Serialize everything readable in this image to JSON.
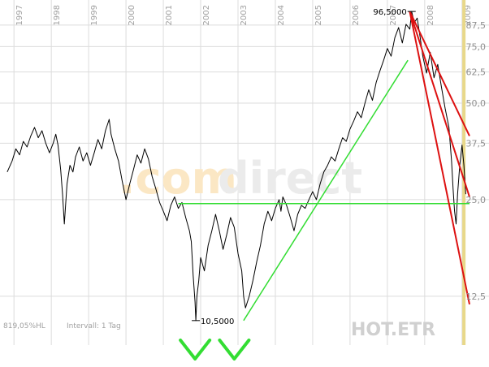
{
  "chart_data": {
    "type": "line",
    "title": "",
    "xlabel": "",
    "ylabel": "",
    "y_scale": "log",
    "ylim": [
      9.5,
      100
    ],
    "xlim": [
      1996.8,
      2009.2
    ],
    "grid": true,
    "year_labels": [
      {
        "year": 1997,
        "label": "1997"
      },
      {
        "year": 1998,
        "label": "1998"
      },
      {
        "year": 1999,
        "label": "1999"
      },
      {
        "year": 2000,
        "label": "2000"
      },
      {
        "year": 2001,
        "label": "2001"
      },
      {
        "year": 2002,
        "label": "2002"
      },
      {
        "year": 2003,
        "label": "2003"
      },
      {
        "year": 2004,
        "label": "2004"
      },
      {
        "year": 2005,
        "label": "2005"
      },
      {
        "year": 2006,
        "label": "2006"
      },
      {
        "year": 2007,
        "label": "2007"
      },
      {
        "year": 2008,
        "label": "2008"
      },
      {
        "year": 2009,
        "label": "2009"
      }
    ],
    "y_ticks": [
      {
        "value": 87.5,
        "label": "87,5"
      },
      {
        "value": 75.0,
        "label": "75,0"
      },
      {
        "value": 62.5,
        "label": "62,5"
      },
      {
        "value": 50.0,
        "label": "50,0"
      },
      {
        "value": 37.5,
        "label": "37,5"
      },
      {
        "value": 25.0,
        "label": "25,0"
      },
      {
        "value": 12.5,
        "label": "12,5"
      }
    ],
    "series": [
      {
        "color": "#000000",
        "points": [
          [
            1996.82,
            30.5
          ],
          [
            1996.95,
            33
          ],
          [
            1997.05,
            36
          ],
          [
            1997.15,
            34.5
          ],
          [
            1997.25,
            38
          ],
          [
            1997.35,
            36.5
          ],
          [
            1997.45,
            39.5
          ],
          [
            1997.55,
            42
          ],
          [
            1997.65,
            39
          ],
          [
            1997.75,
            41
          ],
          [
            1997.85,
            37.5
          ],
          [
            1997.95,
            35
          ],
          [
            1998.05,
            37.5
          ],
          [
            1998.12,
            40
          ],
          [
            1998.18,
            37
          ],
          [
            1998.25,
            31
          ],
          [
            1998.3,
            26
          ],
          [
            1998.35,
            21
          ],
          [
            1998.42,
            28
          ],
          [
            1998.5,
            32
          ],
          [
            1998.58,
            30.5
          ],
          [
            1998.65,
            34
          ],
          [
            1998.75,
            36.5
          ],
          [
            1998.85,
            33
          ],
          [
            1998.95,
            35
          ],
          [
            1999.05,
            32
          ],
          [
            1999.15,
            35
          ],
          [
            1999.25,
            38.5
          ],
          [
            1999.35,
            36
          ],
          [
            1999.45,
            41
          ],
          [
            1999.55,
            44.5
          ],
          [
            1999.6,
            40
          ],
          [
            1999.7,
            36
          ],
          [
            1999.8,
            33
          ],
          [
            1999.9,
            28.5
          ],
          [
            2000.0,
            25
          ],
          [
            2000.1,
            28
          ],
          [
            2000.2,
            31
          ],
          [
            2000.3,
            34.5
          ],
          [
            2000.4,
            32.5
          ],
          [
            2000.5,
            36
          ],
          [
            2000.6,
            33.5
          ],
          [
            2000.7,
            29.5
          ],
          [
            2000.8,
            27
          ],
          [
            2000.9,
            24.5
          ],
          [
            2001.0,
            23
          ],
          [
            2001.1,
            21.5
          ],
          [
            2001.2,
            24
          ],
          [
            2001.3,
            25.5
          ],
          [
            2001.4,
            23.5
          ],
          [
            2001.5,
            24.5
          ],
          [
            2001.6,
            22
          ],
          [
            2001.7,
            20
          ],
          [
            2001.75,
            18.5
          ],
          [
            2001.8,
            14.5
          ],
          [
            2001.85,
            12
          ],
          [
            2001.87,
            10.5
          ],
          [
            2001.9,
            12.5
          ],
          [
            2001.95,
            14
          ],
          [
            2002.0,
            16.5
          ],
          [
            2002.1,
            15
          ],
          [
            2002.2,
            18
          ],
          [
            2002.3,
            20
          ],
          [
            2002.4,
            22.5
          ],
          [
            2002.5,
            20
          ],
          [
            2002.6,
            17.5
          ],
          [
            2002.7,
            19.5
          ],
          [
            2002.8,
            22
          ],
          [
            2002.9,
            20.5
          ],
          [
            2003.0,
            17
          ],
          [
            2003.1,
            15
          ],
          [
            2003.15,
            12.5
          ],
          [
            2003.2,
            11.5
          ],
          [
            2003.3,
            12.5
          ],
          [
            2003.4,
            14
          ],
          [
            2003.5,
            16
          ],
          [
            2003.6,
            18
          ],
          [
            2003.7,
            21
          ],
          [
            2003.8,
            23
          ],
          [
            2003.9,
            21.5
          ],
          [
            2004.0,
            23.5
          ],
          [
            2004.1,
            25
          ],
          [
            2004.15,
            23
          ],
          [
            2004.2,
            25.5
          ],
          [
            2004.3,
            24
          ],
          [
            2004.4,
            22
          ],
          [
            2004.5,
            20
          ],
          [
            2004.6,
            22.5
          ],
          [
            2004.7,
            24
          ],
          [
            2004.8,
            23.5
          ],
          [
            2004.9,
            25
          ],
          [
            2005.0,
            26.5
          ],
          [
            2005.1,
            25
          ],
          [
            2005.2,
            28
          ],
          [
            2005.3,
            30.5
          ],
          [
            2005.4,
            32
          ],
          [
            2005.5,
            34
          ],
          [
            2005.6,
            33
          ],
          [
            2005.7,
            36
          ],
          [
            2005.8,
            39
          ],
          [
            2005.9,
            38
          ],
          [
            2006.0,
            41.5
          ],
          [
            2006.1,
            44
          ],
          [
            2006.2,
            47
          ],
          [
            2006.3,
            45
          ],
          [
            2006.4,
            50
          ],
          [
            2006.5,
            55
          ],
          [
            2006.6,
            51
          ],
          [
            2006.7,
            58
          ],
          [
            2006.8,
            63
          ],
          [
            2006.9,
            68
          ],
          [
            2007.0,
            74
          ],
          [
            2007.1,
            70
          ],
          [
            2007.2,
            80
          ],
          [
            2007.3,
            86
          ],
          [
            2007.4,
            77
          ],
          [
            2007.5,
            88
          ],
          [
            2007.6,
            85
          ],
          [
            2007.65,
            96.5
          ],
          [
            2007.72,
            89
          ],
          [
            2007.8,
            92
          ],
          [
            2007.88,
            80
          ],
          [
            2007.95,
            70
          ],
          [
            2008.05,
            62
          ],
          [
            2008.15,
            72
          ],
          [
            2008.25,
            60
          ],
          [
            2008.35,
            66
          ],
          [
            2008.45,
            56
          ],
          [
            2008.55,
            48
          ],
          [
            2008.65,
            42
          ],
          [
            2008.72,
            33
          ],
          [
            2008.76,
            27
          ],
          [
            2008.8,
            23
          ],
          [
            2008.84,
            21
          ],
          [
            2008.88,
            26
          ],
          [
            2008.94,
            32
          ],
          [
            2009.0,
            37
          ],
          [
            2009.05,
            32
          ],
          [
            2009.1,
            26
          ]
        ]
      }
    ],
    "trendlines": [
      {
        "color": "#33dd33",
        "points": [
          [
            2003.15,
            10.5
          ],
          [
            2007.55,
            68
          ]
        ]
      },
      {
        "color": "#33dd33",
        "points": [
          [
            2001.4,
            24.3
          ],
          [
            2009.2,
            24.3
          ]
        ]
      },
      {
        "color": "#dd1111",
        "points": [
          [
            2007.6,
            96.5
          ],
          [
            2009.2,
            11.8
          ]
        ]
      },
      {
        "color": "#dd1111",
        "points": [
          [
            2007.6,
            96.5
          ],
          [
            2009.2,
            39.5
          ]
        ]
      },
      {
        "color": "#dd1111",
        "points": [
          [
            2007.6,
            96.5
          ],
          [
            2009.2,
            25.5
          ]
        ]
      }
    ],
    "annotations": [
      {
        "label": "96,5000",
        "x": 2007.65,
        "y": 96.5,
        "anchor": "end"
      },
      {
        "label": "10,5000",
        "x": 2001.87,
        "y": 10.5,
        "anchor": "start"
      }
    ],
    "current_marker": {
      "x": 2009.05,
      "color": "#e8d88a"
    },
    "ticker": "HOT.ETR",
    "watermark": {
      "part1": ".com",
      "part2": "direct",
      "color1": "#fbe7c4",
      "color2": "#ebebeb"
    },
    "footer": {
      "left": "819,05%HL",
      "interval": "Intervall: 1 Tag"
    },
    "checkmarks": [
      {
        "x": 2001.85
      },
      {
        "x": 2002.9
      }
    ],
    "checkmark_color": "#33dd33"
  }
}
